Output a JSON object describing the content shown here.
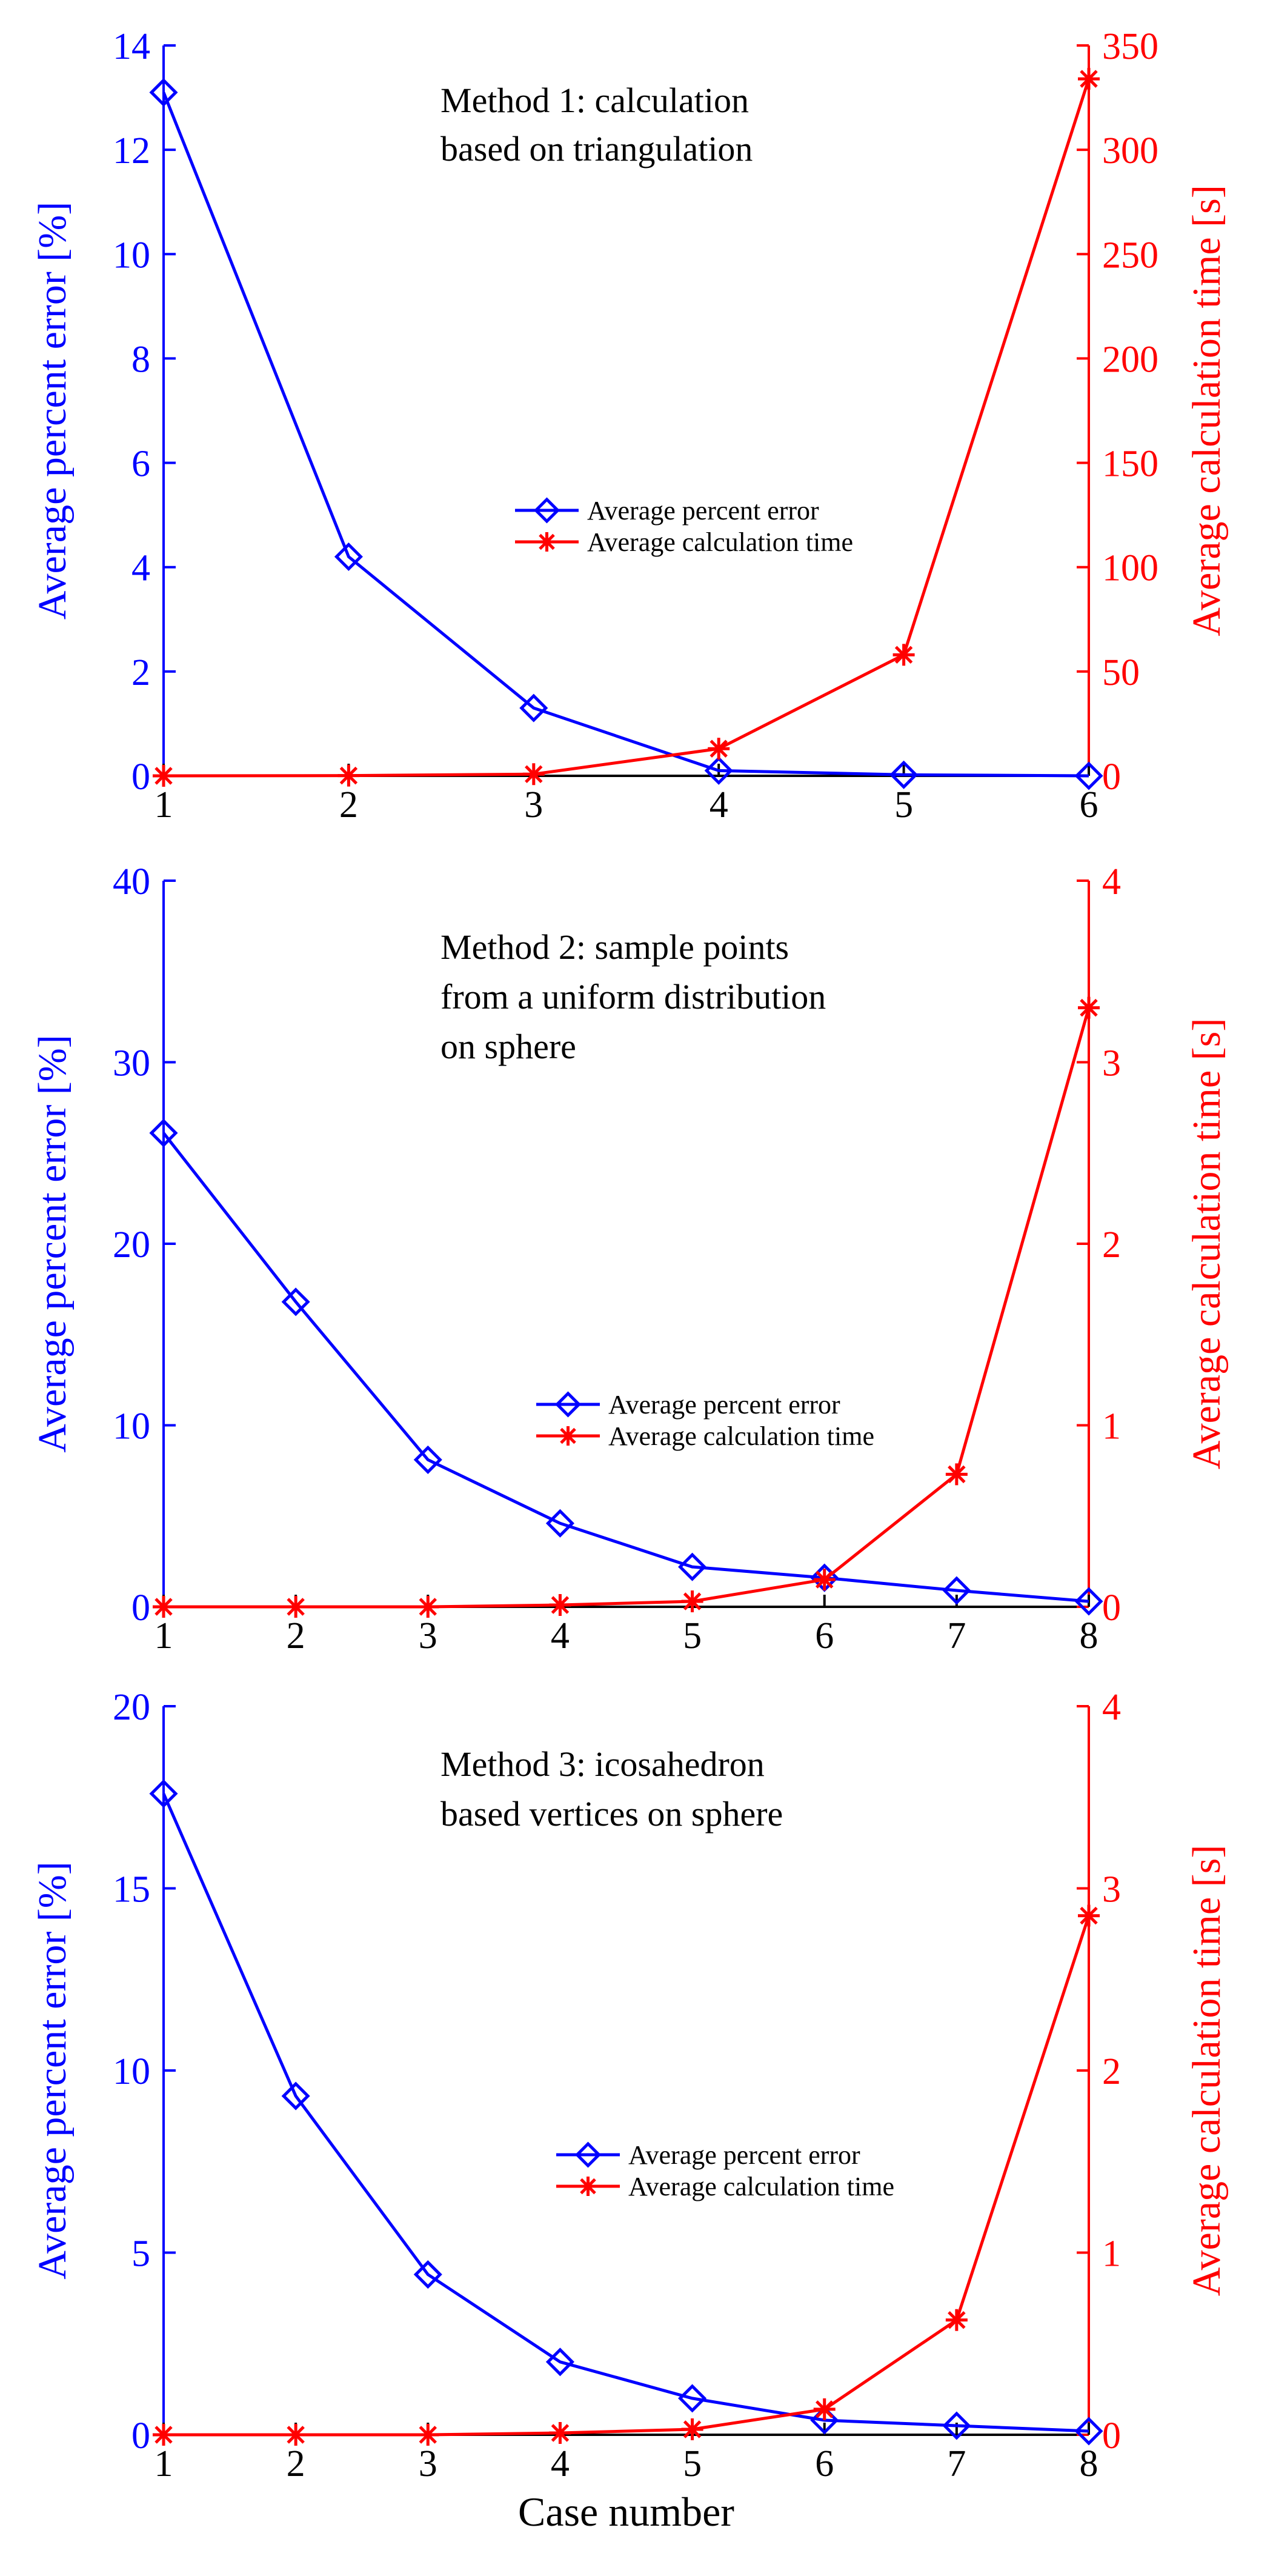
{
  "colors": {
    "left_axis": "#0000ff",
    "right_axis": "#ff0000",
    "frame": "#000000"
  },
  "chart_data": [
    {
      "type": "line",
      "title": "",
      "annotation": [
        "Method 1: calculation",
        "based on triangulation"
      ],
      "categories": [
        "1",
        "2",
        "3",
        "4",
        "5",
        "6"
      ],
      "x": [
        1,
        2,
        3,
        4,
        5,
        6
      ],
      "xlim": [
        1,
        6
      ],
      "xlabel": "",
      "ylabel_left": "Average percent error [%]",
      "ylabel_right": "Average calculation time [s]",
      "ylim_left": [
        0,
        14
      ],
      "ylim_right": [
        0,
        350
      ],
      "yticks_left": [
        "0",
        "2",
        "4",
        "6",
        "8",
        "10",
        "12",
        "14"
      ],
      "yticks_right": [
        "0",
        "50",
        "100",
        "150",
        "200",
        "250",
        "300",
        "350"
      ],
      "legend_position": "center",
      "series": [
        {
          "name": "Average percent error",
          "axis": "left",
          "marker": "diamond",
          "color": "#0000ff",
          "values": [
            13.1,
            4.2,
            1.3,
            0.1,
            0.02,
            0.0
          ]
        },
        {
          "name": "Average calculation time",
          "axis": "right",
          "marker": "asterisk",
          "color": "#ff0000",
          "values": [
            0.0,
            0.1,
            0.8,
            13.0,
            58.0,
            334.0
          ]
        }
      ]
    },
    {
      "type": "line",
      "title": "",
      "annotation": [
        "Method 2: sample points",
        "from a uniform distribution",
        "on sphere"
      ],
      "categories": [
        "1",
        "2",
        "3",
        "4",
        "5",
        "6",
        "7",
        "8"
      ],
      "x": [
        1,
        2,
        3,
        4,
        5,
        6,
        7,
        8
      ],
      "xlim": [
        1,
        8
      ],
      "xlabel": "",
      "ylabel_left": "Average percent error [%]",
      "ylabel_right": "Average calculation time [s]",
      "ylim_left": [
        0,
        40
      ],
      "ylim_right": [
        0,
        4
      ],
      "yticks_left": [
        "0",
        "10",
        "20",
        "30",
        "40"
      ],
      "yticks_right": [
        "0",
        "1",
        "2",
        "3",
        "4"
      ],
      "legend_position": "center-right",
      "series": [
        {
          "name": "Average percent error",
          "axis": "left",
          "marker": "diamond",
          "color": "#0000ff",
          "values": [
            26.1,
            16.8,
            8.1,
            4.6,
            2.2,
            1.6,
            0.9,
            0.3
          ]
        },
        {
          "name": "Average calculation time",
          "axis": "right",
          "marker": "asterisk",
          "color": "#ff0000",
          "values": [
            0.0,
            0.0,
            0.0,
            0.01,
            0.03,
            0.15,
            0.73,
            3.3
          ]
        }
      ]
    },
    {
      "type": "line",
      "title": "",
      "annotation": [
        "Method 3: icosahedron",
        "based vertices on sphere"
      ],
      "categories": [
        "1",
        "2",
        "3",
        "4",
        "5",
        "6",
        "7",
        "8"
      ],
      "x": [
        1,
        2,
        3,
        4,
        5,
        6,
        7,
        8
      ],
      "xlim": [
        1,
        8
      ],
      "xlabel": "Case number",
      "ylabel_left": "Average percent error [%]",
      "ylabel_right": "Average calculation time [s]",
      "ylim_left": [
        0,
        20
      ],
      "ylim_right": [
        0,
        4
      ],
      "yticks_left": [
        "0",
        "5",
        "10",
        "15",
        "20"
      ],
      "yticks_right": [
        "0",
        "1",
        "2",
        "3",
        "4"
      ],
      "legend_position": "center-right",
      "series": [
        {
          "name": "Average percent error",
          "axis": "left",
          "marker": "diamond",
          "color": "#0000ff",
          "values": [
            17.6,
            9.3,
            4.4,
            2.0,
            1.0,
            0.4,
            0.25,
            0.1
          ]
        },
        {
          "name": "Average calculation time",
          "axis": "right",
          "marker": "asterisk",
          "color": "#ff0000",
          "values": [
            0.0,
            0.0,
            0.0,
            0.01,
            0.03,
            0.14,
            0.63,
            2.85
          ]
        }
      ]
    }
  ]
}
